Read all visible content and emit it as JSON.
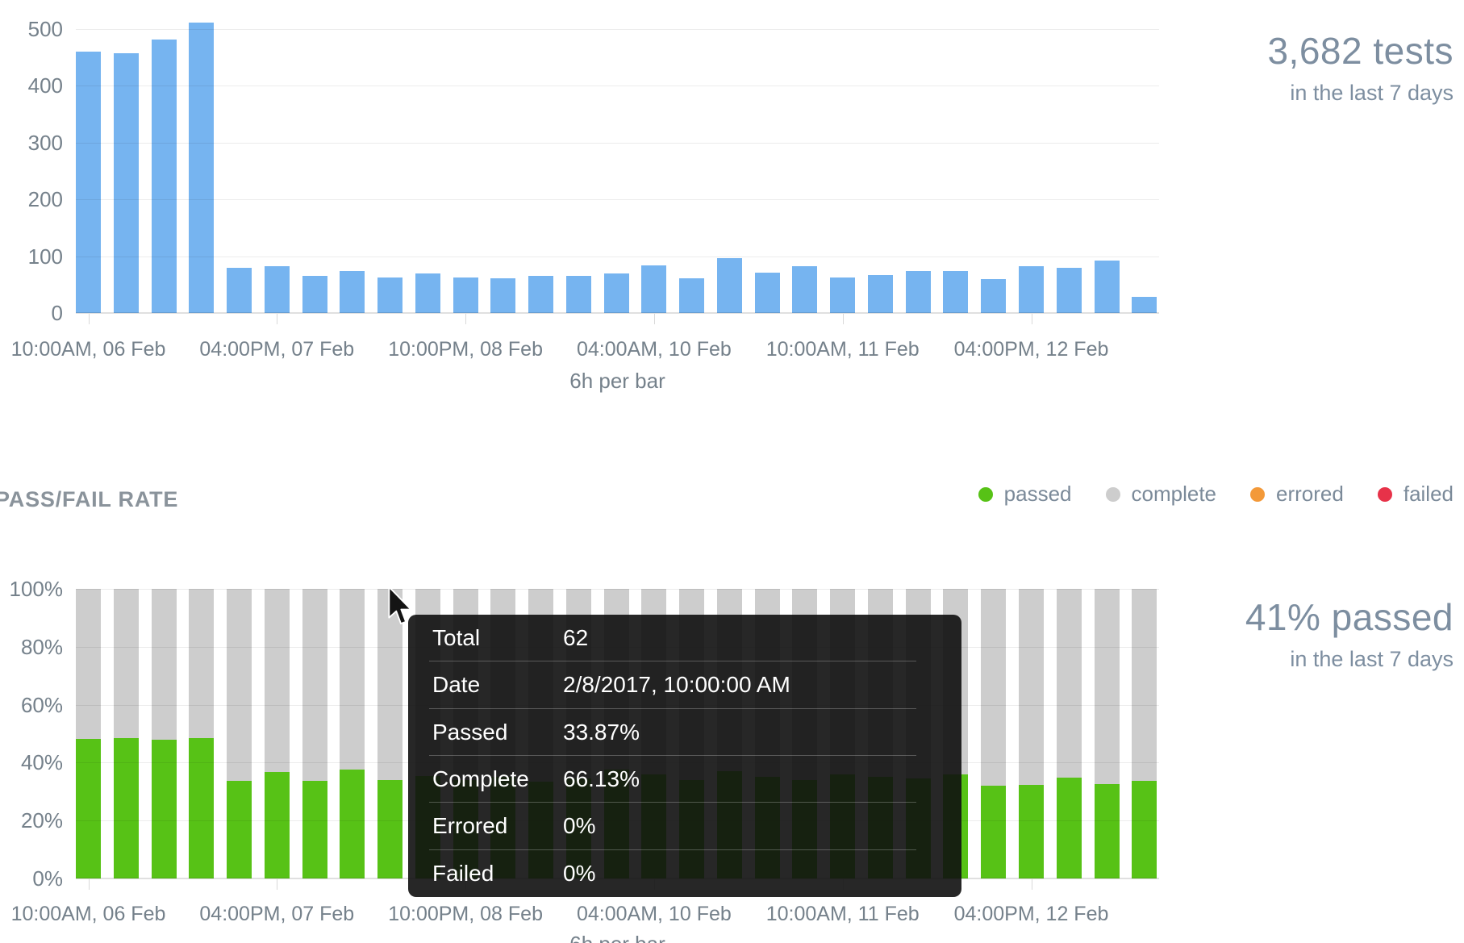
{
  "kpi_tests": {
    "value": "3,682 tests",
    "caption": "in the last 7 days"
  },
  "kpi_passed": {
    "value": "41% passed",
    "caption": "in the last 7 days"
  },
  "section_title": "PASS/FAIL RATE",
  "legend": {
    "items": [
      {
        "label": "passed",
        "color": "#57c216"
      },
      {
        "label": "complete",
        "color": "#cdcdcd"
      },
      {
        "label": "errored",
        "color": "#f39939"
      },
      {
        "label": "failed",
        "color": "#e73249"
      }
    ]
  },
  "tooltip": {
    "rows": [
      {
        "label": "Total",
        "value": "62"
      },
      {
        "label": "Date",
        "value": "2/8/2017, 10:00:00 AM"
      },
      {
        "label": "Passed",
        "value": "33.87%"
      },
      {
        "label": "Complete",
        "value": "66.13%"
      },
      {
        "label": "Errored",
        "value": "0%"
      },
      {
        "label": "Failed",
        "value": "0%"
      }
    ]
  },
  "colors": {
    "volume_bar": "#76b4f0",
    "passed": "#57c216",
    "complete": "#cdcdcd",
    "errored": "#f39939",
    "failed": "#e73249",
    "axis_text": "#75818b",
    "kpi_text": "#7d8ea0"
  },
  "chart_data": [
    {
      "type": "bar",
      "id": "tests-volume",
      "title": "3,682 tests",
      "subtitle": "in the last 7 days",
      "xlabel": "6h per bar",
      "ylabel": "",
      "ylim": [
        0,
        500
      ],
      "y_ticks": [
        0,
        100,
        200,
        300,
        400,
        500
      ],
      "grid": true,
      "bar_color": "#76b4f0",
      "x_tick_labels": [
        "10:00AM, 06 Feb",
        "04:00PM, 07 Feb",
        "10:00PM, 08 Feb",
        "04:00AM, 10 Feb",
        "10:00AM, 11 Feb",
        "04:00PM, 12 Feb"
      ],
      "x_tick_indices": [
        0,
        5,
        10,
        15,
        20,
        25
      ],
      "values": [
        460,
        458,
        482,
        512,
        80,
        82,
        65,
        74,
        62,
        70,
        62,
        61,
        65,
        65,
        70,
        84,
        61,
        97,
        71,
        82,
        62,
        67,
        74,
        74,
        60,
        82,
        80,
        92,
        28
      ]
    },
    {
      "type": "stacked-bar",
      "id": "pass-fail-rate",
      "title": "PASS/FAIL RATE",
      "subtitle": "41% passed in the last 7 days",
      "xlabel": "6h per bar",
      "ylabel": "",
      "ylim": [
        0,
        100
      ],
      "y_ticks": [
        "0%",
        "20%",
        "40%",
        "60%",
        "80%",
        "100%"
      ],
      "grid": true,
      "legend_position": "top-right",
      "x_tick_labels": [
        "10:00AM, 06 Feb",
        "04:00PM, 07 Feb",
        "10:00PM, 08 Feb",
        "04:00AM, 10 Feb",
        "10:00AM, 11 Feb",
        "04:00PM, 12 Feb"
      ],
      "x_tick_indices": [
        0,
        5,
        10,
        15,
        20,
        25
      ],
      "hovered_bar_index": 8,
      "series": [
        {
          "name": "passed",
          "color": "#57c216",
          "values": [
            48.2,
            48.5,
            48.0,
            48.6,
            33.6,
            36.9,
            33.6,
            37.7,
            33.87,
            35.5,
            34.0,
            35.0,
            33.5,
            34.5,
            37.5,
            36.0,
            34.0,
            37.0,
            35.0,
            34.0,
            36.0,
            35.0,
            34.5,
            36.0,
            32.0,
            32.2,
            34.9,
            32.7,
            33.7
          ]
        },
        {
          "name": "complete",
          "color": "#cdcdcd",
          "values": [
            51.8,
            51.5,
            52.0,
            51.4,
            66.4,
            63.1,
            66.4,
            62.3,
            66.13,
            64.5,
            66.0,
            65.0,
            66.5,
            65.5,
            62.5,
            64.0,
            66.0,
            63.0,
            65.0,
            66.0,
            64.0,
            65.0,
            65.5,
            64.0,
            68.0,
            67.8,
            65.1,
            67.3,
            66.3
          ]
        },
        {
          "name": "errored",
          "color": "#f39939",
          "values": [
            0,
            0,
            0,
            0,
            0,
            0,
            0,
            0,
            0,
            0,
            0,
            0,
            0,
            0,
            0,
            0,
            0,
            0,
            0,
            0,
            0,
            0,
            0,
            0,
            0,
            0,
            0,
            0,
            0
          ]
        },
        {
          "name": "failed",
          "color": "#e73249",
          "values": [
            0,
            0,
            0,
            0,
            0,
            0,
            0,
            0,
            0,
            0,
            0,
            0,
            0,
            0,
            0,
            0,
            0,
            0,
            0,
            0,
            0,
            0,
            0,
            0,
            0,
            0,
            0,
            0,
            0
          ]
        }
      ]
    }
  ]
}
